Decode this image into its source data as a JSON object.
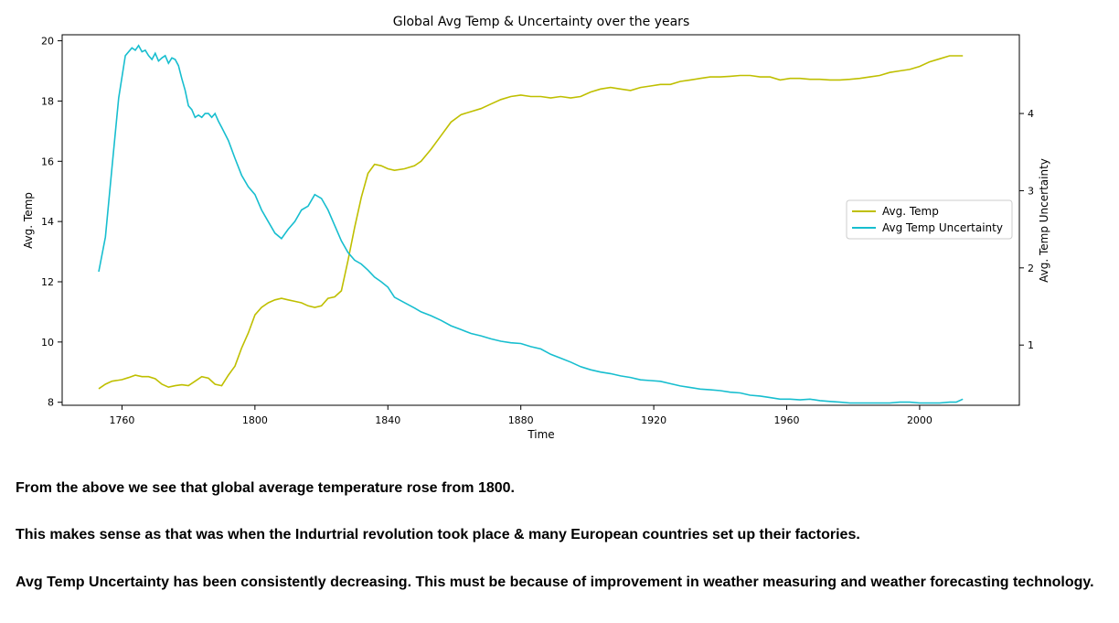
{
  "chart_data": {
    "type": "line",
    "title": "Global Avg Temp & Uncertainty over the years",
    "xlabel": "Time",
    "ylabel_left": "Avg. Temp",
    "ylabel_right": "Avg. Temp Uncertainty",
    "xlim": [
      1742,
      2030
    ],
    "ylim_left": [
      7.9,
      20.2
    ],
    "ylim_right": [
      0.22,
      5.02
    ],
    "x_ticks": [
      1760,
      1800,
      1840,
      1880,
      1920,
      1960,
      2000
    ],
    "y_ticks_left": [
      8,
      10,
      12,
      14,
      16,
      18,
      20
    ],
    "y_ticks_right": [
      1,
      2,
      3,
      4
    ],
    "grid": false,
    "legend_position": "center-right",
    "series": [
      {
        "name": "Avg. Temp",
        "axis": "left",
        "color": "#bfbf00",
        "x": [
          1753,
          1755,
          1757,
          1760,
          1762,
          1764,
          1766,
          1768,
          1770,
          1772,
          1774,
          1776,
          1778,
          1780,
          1782,
          1784,
          1786,
          1788,
          1790,
          1792,
          1794,
          1796,
          1798,
          1800,
          1802,
          1804,
          1806,
          1808,
          1810,
          1812,
          1814,
          1816,
          1818,
          1820,
          1822,
          1824,
          1826,
          1828,
          1830,
          1832,
          1834,
          1836,
          1838,
          1840,
          1842,
          1845,
          1848,
          1850,
          1853,
          1856,
          1859,
          1862,
          1865,
          1868,
          1871,
          1874,
          1877,
          1880,
          1883,
          1886,
          1889,
          1892,
          1895,
          1898,
          1901,
          1904,
          1907,
          1910,
          1913,
          1916,
          1919,
          1922,
          1925,
          1928,
          1931,
          1934,
          1937,
          1940,
          1943,
          1946,
          1949,
          1952,
          1955,
          1958,
          1961,
          1964,
          1967,
          1970,
          1973,
          1976,
          1979,
          1982,
          1985,
          1988,
          1991,
          1994,
          1997,
          2000,
          2003,
          2006,
          2009,
          2011,
          2013
        ],
        "y": [
          8.45,
          8.6,
          8.7,
          8.75,
          8.82,
          8.9,
          8.85,
          8.85,
          8.78,
          8.6,
          8.5,
          8.55,
          8.58,
          8.55,
          8.7,
          8.85,
          8.8,
          8.6,
          8.55,
          8.9,
          9.2,
          9.8,
          10.3,
          10.9,
          11.15,
          11.3,
          11.4,
          11.45,
          11.4,
          11.35,
          11.3,
          11.2,
          11.15,
          11.2,
          11.45,
          11.5,
          11.7,
          12.7,
          13.8,
          14.8,
          15.6,
          15.9,
          15.85,
          15.75,
          15.7,
          15.75,
          15.85,
          16.0,
          16.4,
          16.85,
          17.3,
          17.55,
          17.65,
          17.75,
          17.9,
          18.05,
          18.15,
          18.2,
          18.15,
          18.15,
          18.1,
          18.15,
          18.1,
          18.15,
          18.3,
          18.4,
          18.45,
          18.4,
          18.35,
          18.45,
          18.5,
          18.55,
          18.55,
          18.65,
          18.7,
          18.75,
          18.8,
          18.8,
          18.82,
          18.85,
          18.85,
          18.8,
          18.8,
          18.7,
          18.75,
          18.75,
          18.72,
          18.72,
          18.7,
          18.7,
          18.72,
          18.75,
          18.8,
          18.85,
          18.95,
          19.0,
          19.05,
          19.15,
          19.3,
          19.4,
          19.5,
          19.5,
          19.5
        ]
      },
      {
        "name": "Avg Temp Uncertainty",
        "axis": "right",
        "color": "#17becf",
        "x": [
          1753,
          1755,
          1757,
          1759,
          1761,
          1763,
          1764,
          1765,
          1766,
          1767,
          1768,
          1769,
          1770,
          1771,
          1772,
          1773,
          1774,
          1775,
          1776,
          1777,
          1778,
          1779,
          1780,
          1781,
          1782,
          1783,
          1784,
          1785,
          1786,
          1787,
          1788,
          1789,
          1790,
          1792,
          1794,
          1796,
          1798,
          1800,
          1802,
          1804,
          1806,
          1808,
          1810,
          1812,
          1814,
          1816,
          1818,
          1820,
          1822,
          1824,
          1826,
          1828,
          1830,
          1832,
          1834,
          1836,
          1838,
          1840,
          1842,
          1845,
          1848,
          1850,
          1853,
          1856,
          1859,
          1862,
          1865,
          1868,
          1871,
          1874,
          1877,
          1880,
          1883,
          1886,
          1889,
          1892,
          1895,
          1898,
          1901,
          1904,
          1907,
          1910,
          1913,
          1916,
          1919,
          1922,
          1925,
          1928,
          1931,
          1934,
          1937,
          1940,
          1943,
          1946,
          1949,
          1952,
          1955,
          1958,
          1961,
          1964,
          1967,
          1970,
          1973,
          1976,
          1979,
          1982,
          1985,
          1988,
          1991,
          1994,
          1997,
          2000,
          2003,
          2006,
          2009,
          2011,
          2013
        ],
        "y": [
          1.95,
          2.4,
          3.3,
          4.2,
          4.75,
          4.85,
          4.82,
          4.88,
          4.8,
          4.82,
          4.75,
          4.7,
          4.78,
          4.68,
          4.72,
          4.75,
          4.65,
          4.72,
          4.7,
          4.62,
          4.45,
          4.3,
          4.1,
          4.05,
          3.95,
          3.98,
          3.95,
          4.0,
          4.0,
          3.95,
          4.0,
          3.9,
          3.82,
          3.65,
          3.42,
          3.2,
          3.05,
          2.95,
          2.75,
          2.6,
          2.45,
          2.38,
          2.5,
          2.6,
          2.75,
          2.8,
          2.95,
          2.9,
          2.75,
          2.55,
          2.35,
          2.2,
          2.1,
          2.05,
          1.97,
          1.88,
          1.82,
          1.75,
          1.62,
          1.55,
          1.48,
          1.43,
          1.38,
          1.32,
          1.25,
          1.2,
          1.15,
          1.12,
          1.08,
          1.05,
          1.03,
          1.02,
          0.98,
          0.95,
          0.88,
          0.83,
          0.78,
          0.72,
          0.68,
          0.65,
          0.63,
          0.6,
          0.58,
          0.55,
          0.54,
          0.53,
          0.5,
          0.47,
          0.45,
          0.43,
          0.42,
          0.41,
          0.39,
          0.38,
          0.35,
          0.34,
          0.32,
          0.3,
          0.3,
          0.29,
          0.3,
          0.28,
          0.27,
          0.26,
          0.25,
          0.25,
          0.25,
          0.25,
          0.25,
          0.26,
          0.26,
          0.25,
          0.25,
          0.25,
          0.26,
          0.26,
          0.3
        ]
      }
    ]
  },
  "notes": {
    "line1": "From the above we see that global average temperature rose from 1800.",
    "line2": "This makes sense as that was when the Indurtrial revolution took place & many European countries set up their factories.",
    "line3": "Avg Temp Uncertainty has been consistently decreasing. This must be because of improvement in weather measuring and weather forecasting technology."
  }
}
